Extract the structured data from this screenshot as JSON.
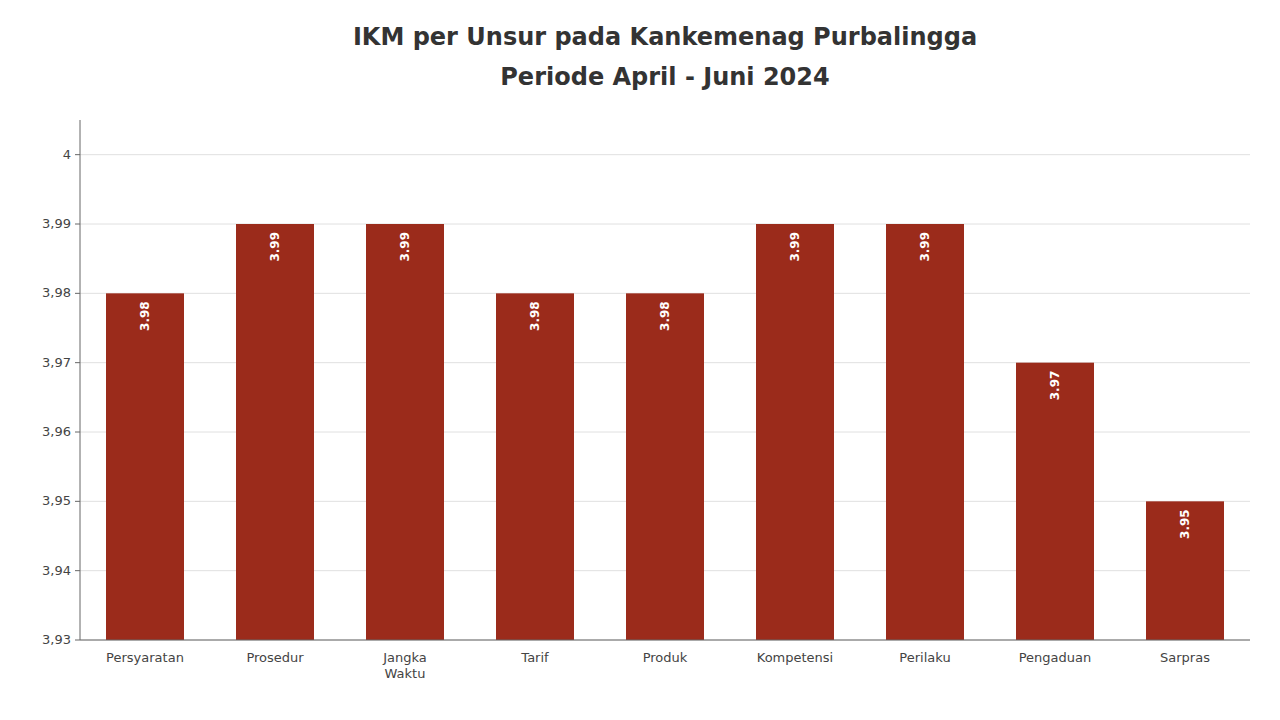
{
  "chart_data": {
    "type": "bar",
    "title": "IKM per Unsur pada Kankemenag  Purbalingga",
    "subtitle": "Periode April - Juni 2024",
    "categories": [
      "Persyaratan",
      "Prosedur",
      "Jangka\nWaktu",
      "Tarif",
      "Produk",
      "Kompetensi",
      "Perilaku",
      "Pengaduan",
      "Sarpras"
    ],
    "values": [
      3.98,
      3.99,
      3.99,
      3.98,
      3.98,
      3.99,
      3.99,
      3.97,
      3.95
    ],
    "color": "#9B2B1B",
    "ylim": [
      3.93,
      4.005
    ],
    "yticks": [
      {
        "value": 3.93,
        "label": "3,93"
      },
      {
        "value": 3.94,
        "label": "3,94"
      },
      {
        "value": 3.95,
        "label": "3,95"
      },
      {
        "value": 3.96,
        "label": "3,96"
      },
      {
        "value": 3.97,
        "label": "3,97"
      },
      {
        "value": 3.98,
        "label": "3,98"
      },
      {
        "value": 3.99,
        "label": "3,99"
      },
      4
    ],
    "grid": true,
    "data_labels": true
  }
}
